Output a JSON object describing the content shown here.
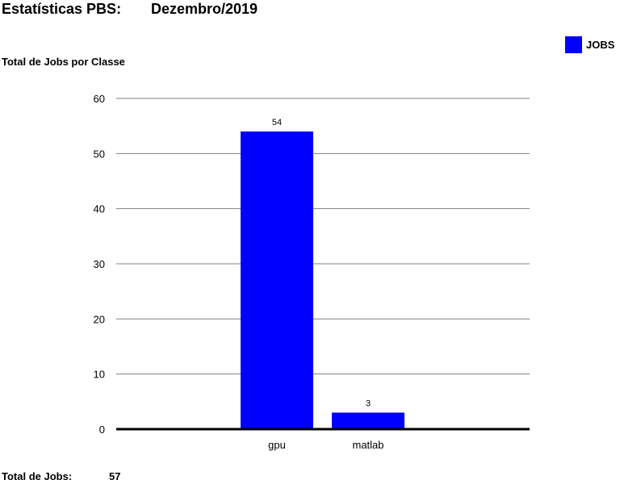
{
  "header": {
    "title": "Estatísticas PBS:",
    "period": "Dezembro/2019"
  },
  "footer": {
    "total_label": "Total de Jobs:",
    "total_value": "57"
  },
  "colors": {
    "bar": "#0000ff",
    "grid": "#808080",
    "axis": "#000000"
  },
  "chart_data": {
    "type": "bar",
    "title": "Total de Jobs por Classe",
    "categories": [
      "gpu",
      "matlab"
    ],
    "series": [
      {
        "name": "JOBS",
        "values": [
          54,
          3
        ]
      }
    ],
    "ylim": [
      0,
      60
    ],
    "yticks": [
      0,
      10,
      20,
      30,
      40,
      50,
      60
    ],
    "grid": true,
    "legend": "top-right",
    "data_labels": true
  }
}
